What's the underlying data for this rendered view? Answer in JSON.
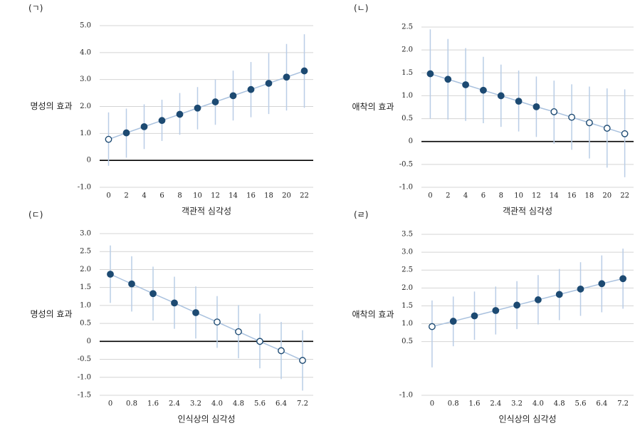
{
  "chart_data": [
    {
      "type": "errorbar",
      "panel": "(ㄱ)",
      "x_label": "객관적 심각성",
      "y_label": "명성의 효과",
      "categories": [
        "0",
        "2",
        "4",
        "6",
        "8",
        "10",
        "12",
        "14",
        "16",
        "18",
        "20",
        "22"
      ],
      "values": [
        0.78,
        1.02,
        1.25,
        1.48,
        1.71,
        1.94,
        2.17,
        2.4,
        2.63,
        2.86,
        3.09,
        3.32
      ],
      "ci_lower": [
        -0.2,
        0.1,
        0.42,
        0.72,
        0.95,
        1.15,
        1.32,
        1.48,
        1.6,
        1.72,
        1.85,
        1.95
      ],
      "ci_upper": [
        1.78,
        1.92,
        2.08,
        2.25,
        2.5,
        2.72,
        3.0,
        3.33,
        3.65,
        3.98,
        4.32,
        4.68
      ],
      "significant": [
        false,
        true,
        true,
        true,
        true,
        true,
        true,
        true,
        true,
        true,
        true,
        true
      ],
      "ylim": [
        -1,
        5
      ],
      "yticks": [
        {
          "value": -1,
          "label": "-1.0"
        },
        0,
        {
          "value": 1,
          "label": "1.0"
        },
        {
          "value": 2,
          "label": "2.0"
        },
        {
          "value": 3,
          "label": "3.0"
        },
        {
          "value": 4,
          "label": "4.0"
        },
        {
          "value": 5,
          "label": "5.0"
        }
      ],
      "grid": true,
      "zero_line": true,
      "color": "#1d4a72",
      "line_color": "#a9c1de",
      "error_color": "#b9cde6"
    },
    {
      "type": "errorbar",
      "panel": "(ㄴ)",
      "x_label": "객관적 심각성",
      "y_label": "애착의 효과",
      "categories": [
        "0",
        "2",
        "4",
        "6",
        "8",
        "10",
        "12",
        "14",
        "16",
        "18",
        "20",
        "22"
      ],
      "values": [
        1.48,
        1.36,
        1.24,
        1.12,
        1.0,
        0.88,
        0.76,
        0.65,
        0.53,
        0.41,
        0.29,
        0.17
      ],
      "ci_lower": [
        0.5,
        0.48,
        0.45,
        0.4,
        0.32,
        0.22,
        0.1,
        -0.05,
        -0.18,
        -0.37,
        -0.57,
        -0.78
      ],
      "ci_upper": [
        2.45,
        2.24,
        2.04,
        1.85,
        1.68,
        1.55,
        1.42,
        1.33,
        1.25,
        1.2,
        1.16,
        1.14
      ],
      "significant": [
        true,
        true,
        true,
        true,
        true,
        true,
        true,
        false,
        false,
        false,
        false,
        false
      ],
      "ylim": [
        -1,
        2.5
      ],
      "yticks": [
        {
          "value": -1,
          "label": "-1.0"
        },
        -0.5,
        0,
        0.5,
        {
          "value": 1,
          "label": "1.0"
        },
        1.5,
        {
          "value": 2,
          "label": "2.0"
        },
        2.5
      ],
      "grid": true,
      "zero_line": true,
      "color": "#1d4a72",
      "line_color": "#a9c1de",
      "error_color": "#b9cde6"
    },
    {
      "type": "errorbar",
      "panel": "(ㄷ)",
      "x_label": "인식상의 심각성",
      "y_label": "명성의 효과",
      "categories": [
        "0",
        "0.8",
        "1.6",
        "2.4",
        "3.2",
        "4.0",
        "4.8",
        "5.6",
        "6.4",
        "7.2"
      ],
      "values": [
        1.87,
        1.6,
        1.33,
        1.07,
        0.8,
        0.54,
        0.27,
        0.0,
        -0.26,
        -0.53
      ],
      "ci_lower": [
        1.07,
        0.83,
        0.58,
        0.35,
        0.08,
        -0.18,
        -0.47,
        -0.75,
        -1.05,
        -1.37
      ],
      "ci_upper": [
        2.67,
        2.37,
        2.08,
        1.8,
        1.53,
        1.26,
        1.01,
        0.77,
        0.54,
        0.31
      ],
      "significant": [
        true,
        true,
        true,
        true,
        true,
        false,
        false,
        false,
        false,
        false
      ],
      "ylim": [
        -1.5,
        3
      ],
      "yticks": [
        -1.5,
        {
          "value": -1,
          "label": "-1.0"
        },
        -0.5,
        0,
        0.5,
        {
          "value": 1,
          "label": "1.0"
        },
        1.5,
        {
          "value": 2,
          "label": "2.0"
        },
        2.5,
        {
          "value": 3,
          "label": "3.0"
        }
      ],
      "grid": true,
      "zero_line": true,
      "color": "#1d4a72",
      "line_color": "#a9c1de",
      "error_color": "#b9cde6"
    },
    {
      "type": "errorbar",
      "panel": "(ㄹ)",
      "x_label": "인식상의 심각성",
      "y_label": "애착의 효과",
      "categories": [
        "0",
        "0.8",
        "1.6",
        "2.4",
        "3.2",
        "4.0",
        "4.8",
        "5.6",
        "6.4",
        "7.2"
      ],
      "values": [
        0.92,
        1.07,
        1.22,
        1.37,
        1.52,
        1.67,
        1.82,
        1.97,
        2.12,
        2.26
      ],
      "ci_lower": [
        -0.22,
        0.37,
        0.55,
        0.7,
        0.85,
        0.98,
        1.1,
        1.22,
        1.32,
        1.42
      ],
      "ci_upper": [
        1.65,
        1.76,
        1.9,
        2.04,
        2.19,
        2.36,
        2.53,
        2.72,
        2.91,
        3.1
      ],
      "significant": [
        false,
        true,
        true,
        true,
        true,
        true,
        true,
        true,
        true,
        true
      ],
      "ylim": [
        -1,
        3.5
      ],
      "yticks": [
        {
          "value": -1,
          "label": "-1.0"
        },
        0.5,
        {
          "value": 1,
          "label": "1.0"
        },
        1.5,
        {
          "value": 2,
          "label": "2.0"
        },
        2.5,
        {
          "value": 3,
          "label": "3.0"
        },
        3.5
      ],
      "grid": true,
      "zero_line": false,
      "color": "#1d4a72",
      "line_color": "#a9c1de",
      "error_color": "#b9cde6"
    }
  ]
}
